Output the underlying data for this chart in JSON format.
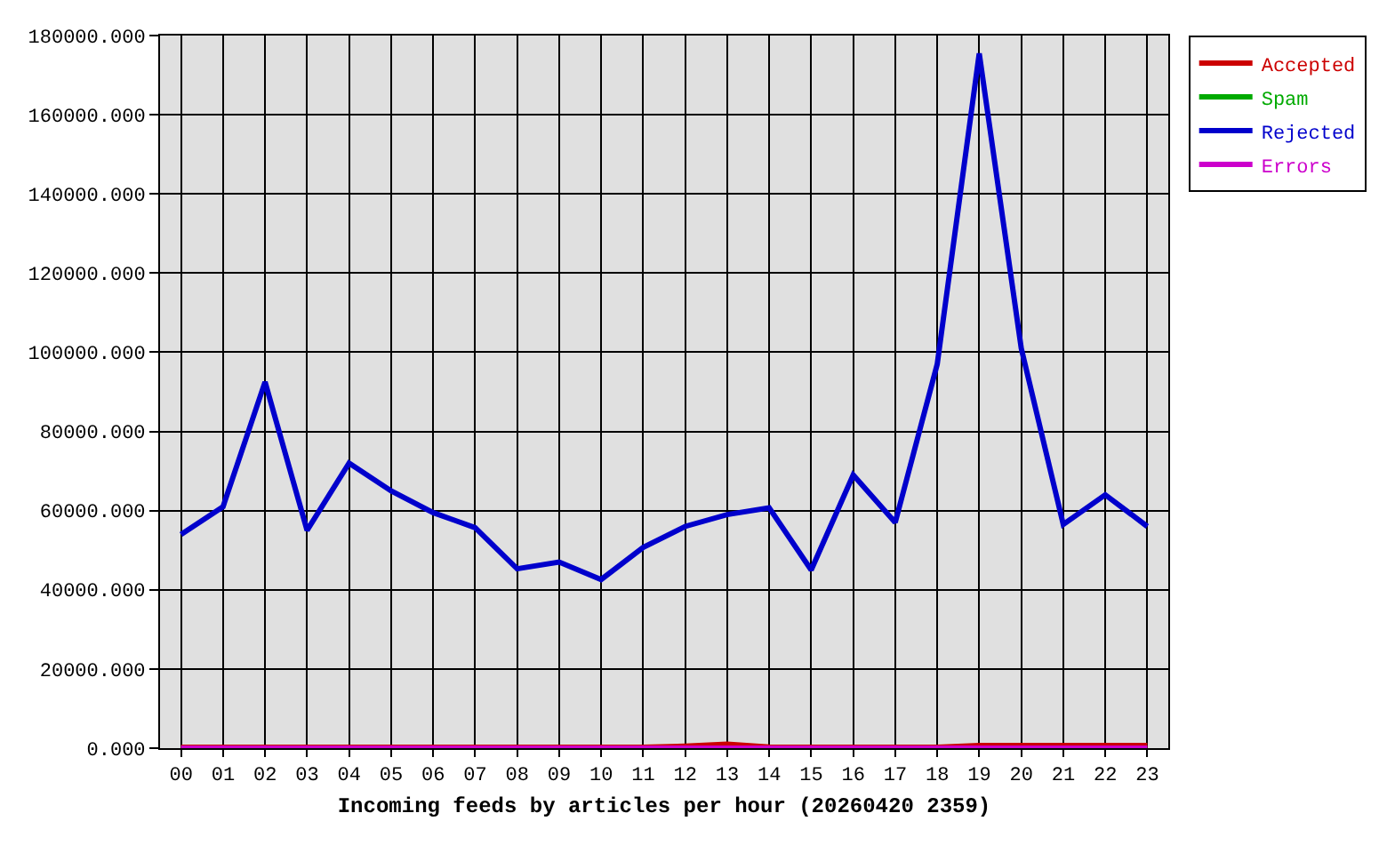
{
  "chart_data": {
    "type": "line",
    "xlabel": "Incoming feeds by articles per hour (20260420 2359)",
    "categories": [
      "00",
      "01",
      "02",
      "03",
      "04",
      "05",
      "06",
      "07",
      "08",
      "09",
      "10",
      "11",
      "12",
      "13",
      "14",
      "15",
      "16",
      "17",
      "18",
      "19",
      "20",
      "21",
      "22",
      "23"
    ],
    "series": [
      {
        "name": "Accepted",
        "color": "#cc0000",
        "values": [
          200,
          200,
          200,
          200,
          200,
          200,
          200,
          200,
          200,
          200,
          200,
          200,
          500,
          1000,
          300,
          200,
          200,
          200,
          200,
          700,
          700,
          700,
          700,
          700
        ]
      },
      {
        "name": "Spam",
        "color": "#00aa00",
        "values": [
          null,
          null,
          null,
          null,
          null,
          null,
          null,
          null,
          null,
          null,
          null,
          null,
          null,
          null,
          null,
          null,
          null,
          null,
          null,
          null,
          null,
          null,
          null,
          null
        ]
      },
      {
        "name": "Rejected",
        "color": "#0000cc",
        "values": [
          54000,
          61000,
          92500,
          55000,
          72000,
          65000,
          59500,
          55700,
          45300,
          47000,
          42600,
          50700,
          56000,
          59000,
          60700,
          45000,
          69000,
          57000,
          97000,
          175500,
          101000,
          56500,
          64000,
          56000
        ]
      },
      {
        "name": "Errors",
        "color": "#cc00cc",
        "values": [
          0,
          0,
          0,
          0,
          0,
          0,
          0,
          0,
          0,
          0,
          0,
          0,
          0,
          0,
          0,
          0,
          0,
          0,
          0,
          0,
          0,
          0,
          0,
          0
        ]
      }
    ],
    "ylim": [
      0,
      180000
    ],
    "yticks": [
      {
        "value": 0,
        "label": "0.000"
      },
      {
        "value": 20000,
        "label": "20000.000"
      },
      {
        "value": 40000,
        "label": "40000.000"
      },
      {
        "value": 60000,
        "label": "60000.000"
      },
      {
        "value": 80000,
        "label": "80000.000"
      },
      {
        "value": 100000,
        "label": "100000.000"
      },
      {
        "value": 120000,
        "label": "120000.000"
      },
      {
        "value": 140000,
        "label": "140000.000"
      },
      {
        "value": 160000,
        "label": "160000.000"
      },
      {
        "value": 180000,
        "label": "180000.000"
      }
    ],
    "grid": true,
    "legend": "top right",
    "marker": "none",
    "line_style": "solid"
  }
}
